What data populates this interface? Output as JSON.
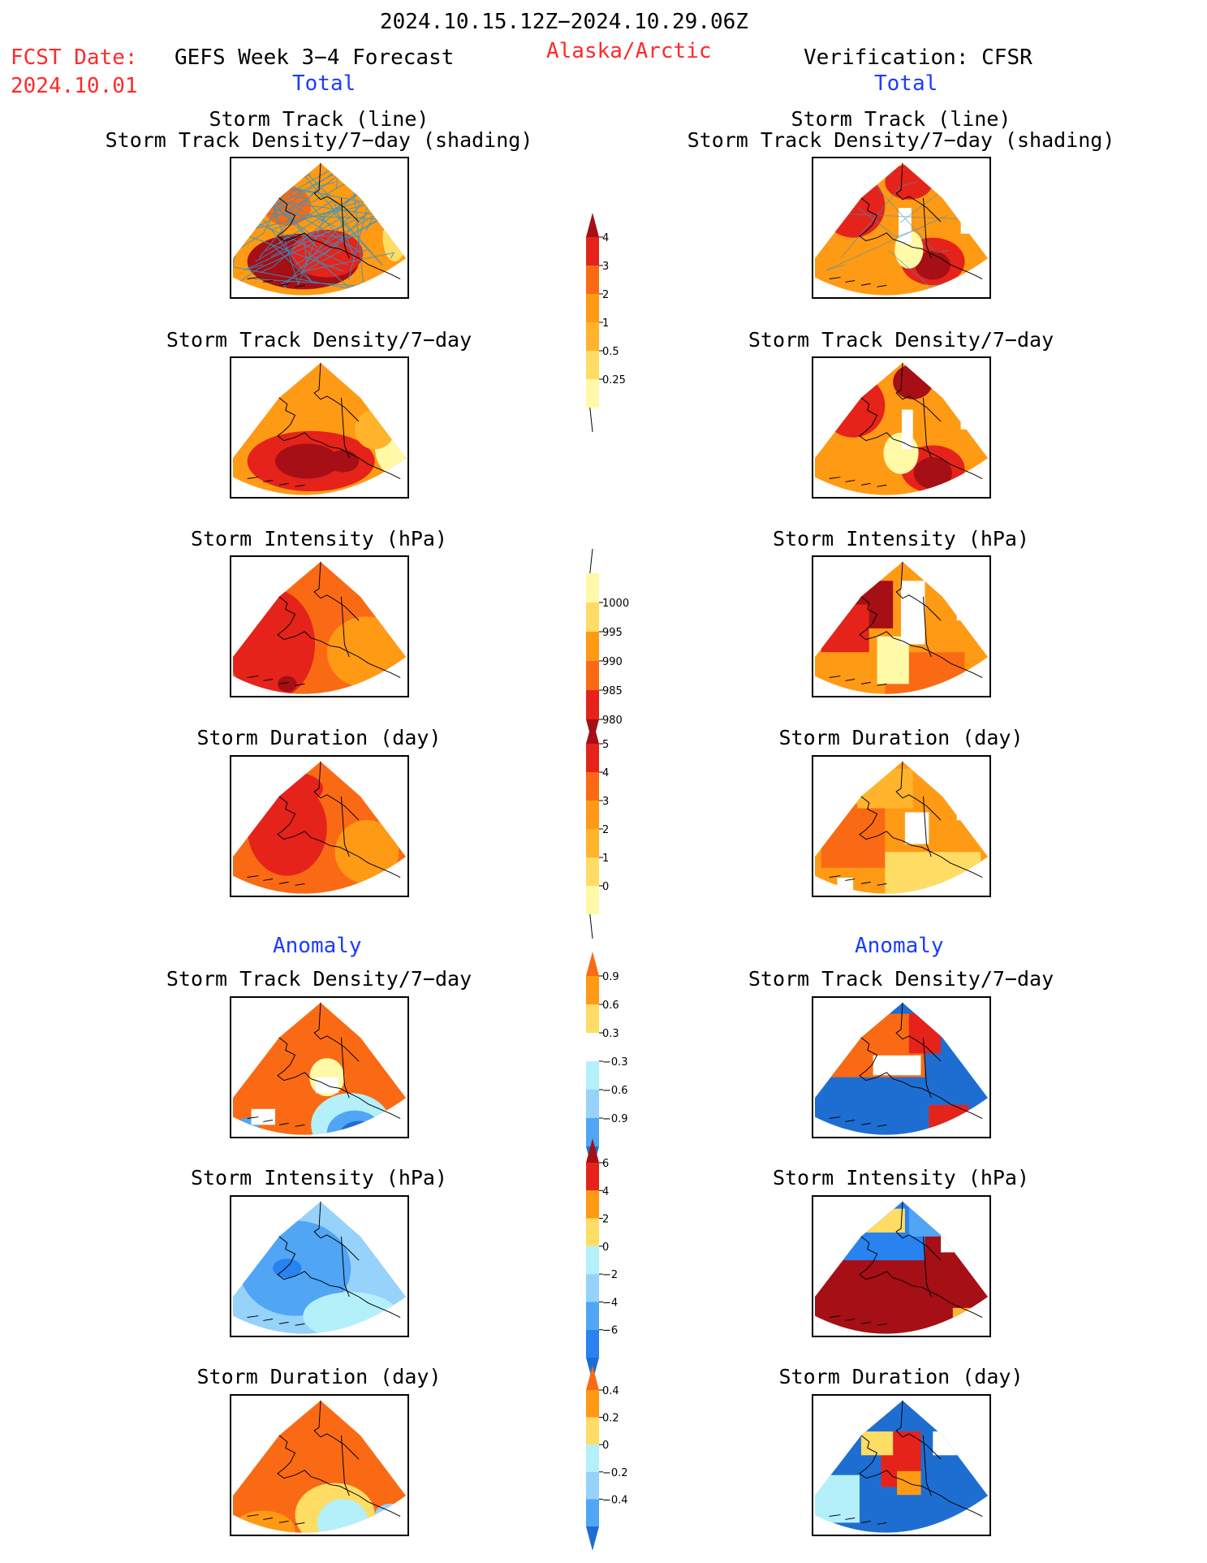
{
  "header": {
    "period": "2024.10.15.12Z−2024.10.29.06Z",
    "fcst_label": "FCST Date:",
    "fcst_date": "2024.10.01",
    "forecast_title": "GEFS Week 3−4 Forecast",
    "region": "Alaska/Arctic",
    "verification": "Verification: CFSR",
    "total_left": "Total",
    "total_right": "Total",
    "anomaly_left": "Anomaly",
    "anomaly_right": "Anomaly"
  },
  "panel_titles": {
    "track_line": "Storm Track (line)",
    "track_shading": "Storm Track Density/7−day (shading)",
    "density": "Storm Track Density/7−day",
    "intensity": "Storm Intensity (hPa)",
    "duration": "Storm Duration (day)"
  },
  "colors": {
    "c_pale_yellow": "#fff9a8",
    "c_yellow": "#ffdc64",
    "c_light_orange": "#ffb42c",
    "c_orange": "#ff9a14",
    "c_dark_orange": "#fa6a14",
    "c_red": "#e5231b",
    "c_dark_red": "#a50f15",
    "c_light_blue": "#b4f0fa",
    "c_mid_light_blue": "#96d2fa",
    "c_mid_blue": "#50a5f5",
    "c_blue": "#2882f0",
    "c_dark_blue": "#1e6ed2",
    "track_line": "#3296c8",
    "map_line": "#000000"
  },
  "chart_data": [
    {
      "id": "colorbar_density_total",
      "type": "heatmap",
      "levels": [
        "0.25",
        "0.5",
        "1",
        "2",
        "3",
        "4"
      ],
      "colors": [
        "#fff9a8",
        "#ffdc64",
        "#ffb42c",
        "#ff9a14",
        "#fa6a14",
        "#e5231b",
        "#a50f15"
      ]
    },
    {
      "id": "colorbar_intensity_total",
      "type": "heatmap",
      "levels": [
        "980",
        "985",
        "990",
        "995",
        "1000"
      ],
      "colors": [
        "#a50f15",
        "#e5231b",
        "#fa6a14",
        "#ff9a14",
        "#ffdc64",
        "#fff9a8"
      ]
    },
    {
      "id": "colorbar_duration_total",
      "type": "heatmap",
      "levels": [
        "0",
        "1",
        "2",
        "3",
        "4",
        "5"
      ],
      "colors": [
        "#fff9a8",
        "#ffdc64",
        "#ffb42c",
        "#ff9a14",
        "#fa6a14",
        "#e5231b",
        "#a50f15"
      ]
    },
    {
      "id": "colorbar_density_anomaly",
      "type": "heatmap",
      "levels": [
        "−0.9",
        "−0.6",
        "−0.3",
        "0.3",
        "0.6",
        "0.9"
      ],
      "colors": [
        "#1e6ed2",
        "#50a5f5",
        "#96d2fa",
        "#b4f0fa",
        "#ffffff",
        "#ffdc64",
        "#ff9a14",
        "#fa6a14"
      ]
    },
    {
      "id": "colorbar_intensity_anomaly",
      "type": "heatmap",
      "levels": [
        "−6",
        "−4",
        "−2",
        "0",
        "2",
        "4",
        "6"
      ],
      "colors": [
        "#1e6ed2",
        "#2882f0",
        "#50a5f5",
        "#96d2fa",
        "#b4f0fa",
        "#ffdc64",
        "#ff9a14",
        "#e5231b",
        "#a50f15"
      ]
    },
    {
      "id": "colorbar_duration_anomaly",
      "type": "heatmap",
      "levels": [
        "−0.4",
        "−0.2",
        "0",
        "0.2",
        "0.4"
      ],
      "colors": [
        "#1e6ed2",
        "#50a5f5",
        "#96d2fa",
        "#b4f0fa",
        "#ffdc64",
        "#ff9a14",
        "#fa6a14"
      ]
    }
  ]
}
